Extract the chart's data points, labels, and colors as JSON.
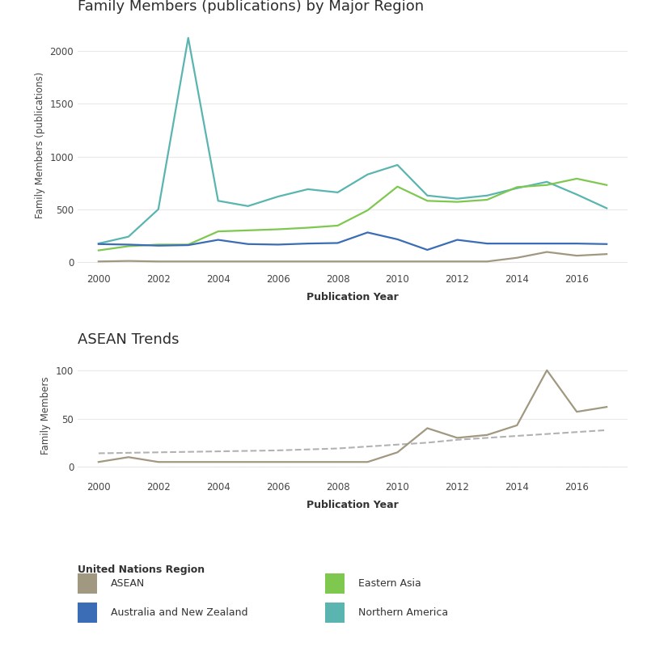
{
  "years": [
    2000,
    2001,
    2002,
    2003,
    2004,
    2005,
    2006,
    2007,
    2008,
    2009,
    2010,
    2011,
    2012,
    2013,
    2014,
    2015,
    2016,
    2017
  ],
  "northern_america": [
    175,
    240,
    500,
    2125,
    580,
    530,
    620,
    690,
    660,
    830,
    920,
    630,
    600,
    630,
    700,
    760,
    640,
    510
  ],
  "eastern_asia": [
    110,
    150,
    165,
    165,
    290,
    300,
    310,
    325,
    345,
    490,
    715,
    580,
    570,
    590,
    710,
    730,
    790,
    730
  ],
  "australia_nz": [
    170,
    165,
    155,
    160,
    210,
    170,
    165,
    175,
    180,
    280,
    215,
    115,
    210,
    175,
    175,
    175,
    175,
    170
  ],
  "asean_top": [
    5,
    10,
    5,
    5,
    5,
    5,
    5,
    5,
    5,
    5,
    5,
    5,
    5,
    5,
    40,
    95,
    60,
    75
  ],
  "asean_bottom": [
    5,
    10,
    5,
    5,
    5,
    5,
    5,
    5,
    5,
    5,
    15,
    40,
    30,
    33,
    43,
    100,
    57,
    62
  ],
  "asean_trend": [
    14,
    14.5,
    15,
    15.5,
    16,
    16.5,
    17,
    18,
    19,
    21,
    23,
    25,
    28,
    30,
    32,
    34,
    36,
    38
  ],
  "colors": {
    "asean": "#a09880",
    "eastern_asia": "#7ec850",
    "australia_nz": "#3a6db5",
    "northern_america": "#5ab5b0"
  },
  "title_top": "Family Members (publications) by Major Region",
  "title_bottom": "ASEAN Trends",
  "xlabel": "Publication Year",
  "ylabel_top": "Family Members (publications)",
  "ylabel_bottom": "Family Members",
  "legend_title": "United Nations Region",
  "bg_color": "#ffffff",
  "grid_color": "#e8e8e8"
}
